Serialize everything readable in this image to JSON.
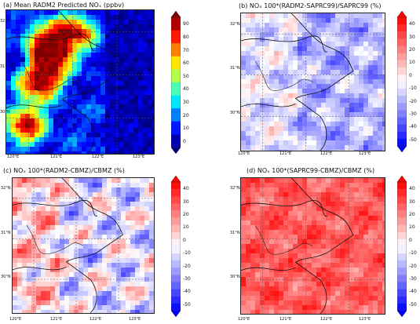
{
  "panels": [
    {
      "id": "a",
      "title": "(a) Mean RADM2 Predicted NOₓ (ppbv)",
      "colorbar_ticks": [
        "0",
        "10",
        "20",
        "30",
        "40",
        "50",
        "60",
        "70",
        "80",
        "90"
      ],
      "field": "absolute"
    },
    {
      "id": "b",
      "title": "(b) NOₓ 100*(RADM2-SAPRC99)/SAPRC99 (%)",
      "colorbar_ticks": [
        "-50",
        "-40",
        "-30",
        "-20",
        "-10",
        "0",
        "10",
        "20",
        "30",
        "40"
      ],
      "field": "diff_mostly_negative"
    },
    {
      "id": "c",
      "title": "(c) NOₓ 100*(RADM2-CBMZ)/CBMZ (%)",
      "colorbar_ticks": [
        "-50",
        "-40",
        "-30",
        "-20",
        "-10",
        "0",
        "10",
        "20",
        "30",
        "40"
      ],
      "field": "diff_mixed"
    },
    {
      "id": "d",
      "title": "(d) NOₓ 100*(SAPRC99-CBMZ)/CBMZ (%)",
      "colorbar_ticks": [
        "-50",
        "-40",
        "-30",
        "-20",
        "-10",
        "0",
        "10",
        "20",
        "30",
        "40"
      ],
      "field": "diff_mostly_positive"
    }
  ],
  "axes": {
    "lon_ticks": [
      "120°E",
      "121°E",
      "122°E",
      "123°E"
    ],
    "lat_ticks": [
      "32°N",
      "31°N",
      "30°N"
    ]
  },
  "colors": {
    "jet": [
      "#00007f",
      "#0000ff",
      "#007fff",
      "#00ffff",
      "#7fff7f",
      "#ffff00",
      "#ff7f00",
      "#ff0000",
      "#7f0000"
    ],
    "bwr": [
      "#0000ff",
      "#ffffff",
      "#ff0000"
    ]
  }
}
